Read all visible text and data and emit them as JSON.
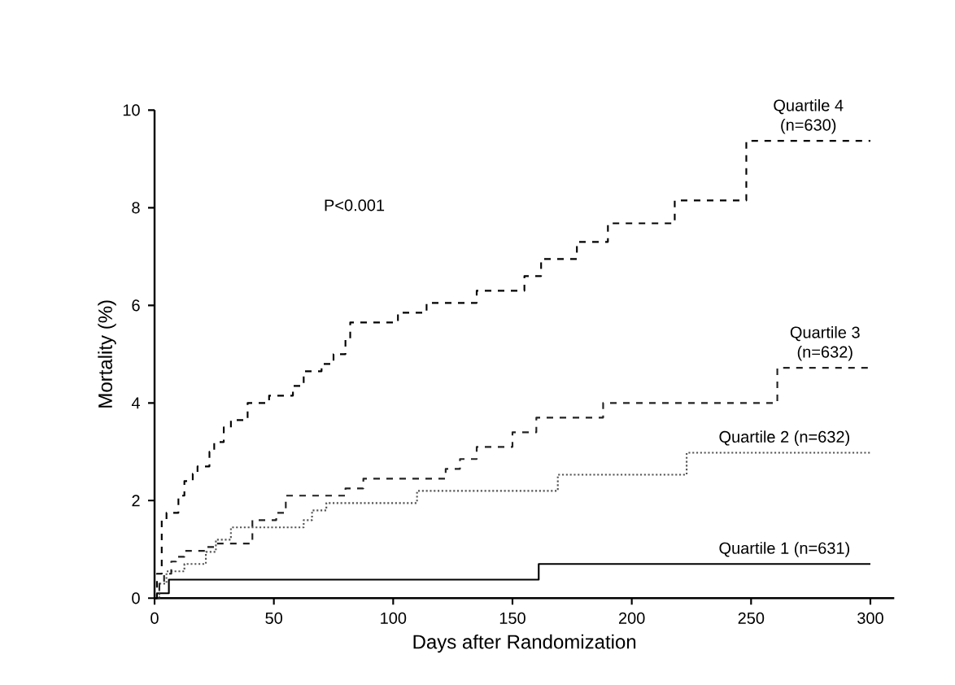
{
  "chart_data": {
    "type": "step",
    "xlabel": "Days after Randomization",
    "ylabel": "Mortality (%)",
    "xlim": [
      0,
      310
    ],
    "ylim": [
      0,
      10
    ],
    "xticks": [
      0,
      50,
      100,
      150,
      200,
      250,
      300
    ],
    "yticks": [
      0,
      2,
      4,
      6,
      8,
      10
    ],
    "grid": false,
    "legend": false,
    "annotations": [
      "P<0.001"
    ],
    "series": [
      {
        "name": "Quartile 1 (n=631)",
        "color": "#000000",
        "line_style": "solid",
        "x": [
          0,
          1,
          6,
          161,
          300
        ],
        "values": [
          0,
          0.1,
          0.38,
          0.7,
          0.7
        ]
      },
      {
        "name": "Quartile 2 (n=632)",
        "color": "#555555",
        "line_style": "dotted",
        "x": [
          0,
          2,
          5,
          12.5,
          21.5,
          25.7,
          32,
          62.5,
          66,
          72,
          110,
          169,
          223,
          300
        ],
        "values": [
          0,
          0.3,
          0.55,
          0.7,
          0.95,
          1.2,
          1.45,
          1.6,
          1.8,
          1.95,
          2.2,
          2.53,
          2.98,
          2.98
        ]
      },
      {
        "name": "Quartile 3 (n=632)",
        "color": "#222222",
        "line_style": "dashed",
        "x": [
          0,
          2,
          4,
          7,
          9,
          12.5,
          21.5,
          25.7,
          41,
          51,
          55,
          80,
          87.5,
          122,
          128,
          135,
          150,
          160,
          188,
          261,
          300
        ],
        "values": [
          0,
          0.3,
          0.5,
          0.75,
          0.85,
          0.97,
          1.05,
          1.12,
          1.6,
          1.75,
          2.1,
          2.25,
          2.45,
          2.65,
          2.85,
          3.1,
          3.4,
          3.7,
          4.0,
          4.72,
          4.72
        ]
      },
      {
        "name": "Quartile 4 (n=630)",
        "color": "#000000",
        "line_style": "dashed",
        "x": [
          0,
          1,
          3,
          5,
          10,
          12.5,
          16,
          18,
          23,
          25,
          29,
          32,
          39,
          48,
          58,
          62.5,
          70,
          75,
          80,
          82,
          102,
          114,
          135,
          155,
          162,
          177,
          190,
          218,
          248,
          300
        ],
        "values": [
          0,
          0.5,
          1.6,
          1.75,
          2.1,
          2.4,
          2.55,
          2.7,
          3.0,
          3.2,
          3.5,
          3.65,
          4.0,
          4.15,
          4.35,
          4.65,
          4.8,
          5.0,
          5.3,
          5.65,
          5.85,
          6.05,
          6.3,
          6.6,
          6.95,
          7.3,
          7.68,
          8.15,
          9.37,
          9.37
        ]
      }
    ]
  }
}
